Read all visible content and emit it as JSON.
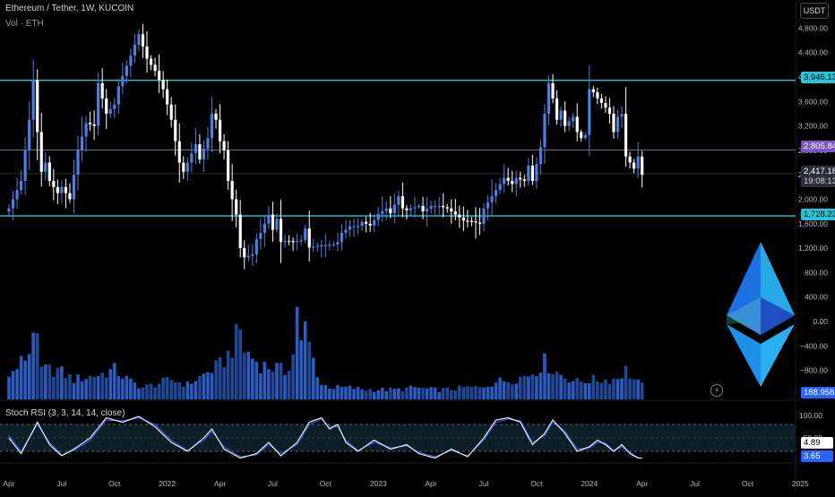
{
  "header": {
    "title": "Ethereum / Tether, 1W, KUCOIN",
    "volume_label": "Vol · ETH",
    "currency_button": "USDT",
    "indicator_label": "Stoch RSI (3, 3, 14, 14, close)"
  },
  "price_tags": {
    "resistance": "3,946.13",
    "mid_level": "2,805.84",
    "last_price": "2,417.18",
    "countdown": "19:08:13",
    "support": "1,728.23",
    "volume": "188.958K",
    "stoch_k": "4.89",
    "stoch_d": "3.65"
  },
  "colors": {
    "background": "#000000",
    "bull_candle": "#4a7fe0",
    "bear_candle": "#ffffff",
    "resistance_line": "#26c6da",
    "support_line": "#26c6da",
    "mid_line": "#6b6e8a",
    "volume_bar": "#2d5fbf",
    "stoch_k": "#ffffff",
    "stoch_d": "#2962ff",
    "logo_top": "#2aa9e8",
    "logo_bottom": "#1e88e5"
  },
  "chart_data": [
    {
      "type": "candlestick",
      "title": "Ethereum / Tether, 1W, KUCOIN",
      "interval": "1W",
      "y_axis_ticks": [
        "4,800.00",
        "4,400.00",
        "4,000.00",
        "3,600.00",
        "3,200.00",
        "2,800.00",
        "2,400.00",
        "2,000.00",
        "1,600.00",
        "1,200.00",
        "800.00",
        "400.00",
        "0.00",
        "−400.00",
        "−800.00",
        "−1,200.00"
      ],
      "y_axis_tick_values": [
        4800,
        4400,
        4000,
        3600,
        3200,
        2800,
        2400,
        2000,
        1600,
        1200,
        800,
        400,
        0,
        -400,
        -800,
        -1200
      ],
      "x_axis_ticks": [
        "Apr",
        "Jul",
        "Oct",
        "2022",
        "Apr",
        "Jul",
        "Oct",
        "2023",
        "Apr",
        "Jul",
        "Oct",
        "2024",
        "Apr",
        "Jul",
        "Oct",
        "2025"
      ],
      "x_axis_tick_weeks": [
        0,
        13,
        26,
        39,
        52,
        65,
        78,
        91,
        104,
        117,
        130,
        143,
        156,
        169,
        182,
        195
      ],
      "first_week": "2021-03-29",
      "horizontal_levels": [
        {
          "name": "resistance",
          "value": 3946.13
        },
        {
          "name": "mid",
          "value": 2805.84
        },
        {
          "name": "current",
          "value": 2417.18
        },
        {
          "name": "support",
          "value": 1728.23
        }
      ],
      "close_anchors": [
        [
          0,
          1850
        ],
        [
          3,
          2300
        ],
        [
          5,
          3300
        ],
        [
          6,
          3950
        ],
        [
          7,
          3100
        ],
        [
          8,
          2450
        ],
        [
          9,
          2600
        ],
        [
          10,
          2300
        ],
        [
          12,
          2100
        ],
        [
          13,
          2200
        ],
        [
          15,
          2000
        ],
        [
          17,
          2800
        ],
        [
          19,
          3250
        ],
        [
          21,
          3200
        ],
        [
          22,
          3900
        ],
        [
          24,
          3400
        ],
        [
          26,
          3550
        ],
        [
          27,
          3850
        ],
        [
          30,
          4350
        ],
        [
          32,
          4700
        ],
        [
          33,
          4500
        ],
        [
          34,
          4300
        ],
        [
          36,
          4100
        ],
        [
          38,
          3800
        ],
        [
          40,
          3300
        ],
        [
          42,
          2600
        ],
        [
          43,
          2450
        ],
        [
          46,
          2900
        ],
        [
          47,
          2650
        ],
        [
          49,
          3000
        ],
        [
          50,
          3400
        ],
        [
          51,
          3300
        ],
        [
          52,
          2950
        ],
        [
          53,
          2800
        ],
        [
          54,
          2300
        ],
        [
          55,
          2000
        ],
        [
          56,
          1750
        ],
        [
          57,
          1200
        ],
        [
          58,
          1050
        ],
        [
          60,
          1100
        ],
        [
          61,
          1350
        ],
        [
          62,
          1450
        ],
        [
          63,
          1600
        ],
        [
          64,
          1750
        ],
        [
          65,
          1500
        ],
        [
          66,
          1680
        ],
        [
          67,
          1300
        ],
        [
          68,
          1320
        ],
        [
          70,
          1310
        ],
        [
          72,
          1330
        ],
        [
          73,
          1520
        ],
        [
          74,
          1210
        ],
        [
          76,
          1240
        ],
        [
          78,
          1250
        ],
        [
          80,
          1260
        ],
        [
          81,
          1300
        ],
        [
          82,
          1450
        ],
        [
          84,
          1560
        ],
        [
          86,
          1560
        ],
        [
          87,
          1630
        ],
        [
          89,
          1570
        ],
        [
          90,
          1660
        ],
        [
          91,
          1760
        ],
        [
          93,
          1850
        ],
        [
          94,
          1770
        ],
        [
          96,
          2050
        ],
        [
          97,
          1850
        ],
        [
          98,
          1820
        ],
        [
          99,
          1850
        ],
        [
          101,
          1890
        ],
        [
          102,
          1800
        ],
        [
          104,
          1890
        ],
        [
          106,
          1890
        ],
        [
          108,
          1850
        ],
        [
          110,
          1750
        ],
        [
          112,
          1650
        ],
        [
          114,
          1640
        ],
        [
          116,
          1600
        ],
        [
          117,
          1850
        ],
        [
          118,
          1950
        ],
        [
          119,
          2050
        ],
        [
          121,
          2250
        ],
        [
          122,
          2350
        ],
        [
          124,
          2250
        ],
        [
          125,
          2350
        ],
        [
          127,
          2300
        ],
        [
          128,
          2550
        ],
        [
          129,
          2300
        ],
        [
          131,
          2850
        ],
        [
          132,
          3400
        ],
        [
          133,
          3900
        ],
        [
          134,
          3650
        ],
        [
          135,
          3300
        ],
        [
          136,
          3450
        ],
        [
          137,
          3200
        ],
        [
          139,
          3350
        ],
        [
          140,
          3100
        ],
        [
          141,
          3000
        ],
        [
          142,
          3050
        ],
        [
          143,
          3800
        ],
        [
          144,
          3750
        ],
        [
          145,
          3650
        ],
        [
          147,
          3500
        ],
        [
          148,
          3400
        ],
        [
          149,
          3100
        ],
        [
          150,
          3350
        ],
        [
          151,
          3400
        ],
        [
          152,
          2700
        ],
        [
          153,
          2600
        ],
        [
          154,
          2500
        ],
        [
          155,
          2700
        ],
        [
          156,
          2400
        ]
      ],
      "last_candle_week": 156
    },
    {
      "type": "bar",
      "title": "Vol · ETH",
      "last_value_label": "188.958K",
      "relative_anchors": [
        [
          0,
          0.22
        ],
        [
          5,
          0.48
        ],
        [
          6,
          0.78
        ],
        [
          8,
          0.3
        ],
        [
          12,
          0.3
        ],
        [
          16,
          0.2
        ],
        [
          22,
          0.25
        ],
        [
          26,
          0.3
        ],
        [
          30,
          0.18
        ],
        [
          33,
          0.12
        ],
        [
          40,
          0.2
        ],
        [
          44,
          0.15
        ],
        [
          48,
          0.25
        ],
        [
          52,
          0.35
        ],
        [
          54,
          0.45
        ],
        [
          57,
          0.7
        ],
        [
          58,
          0.5
        ],
        [
          62,
          0.35
        ],
        [
          66,
          0.32
        ],
        [
          68,
          0.28
        ],
        [
          70,
          0.45
        ],
        [
          71,
          1.0
        ],
        [
          72,
          0.55
        ],
        [
          73,
          0.7
        ],
        [
          75,
          0.4
        ],
        [
          77,
          0.15
        ],
        [
          80,
          0.12
        ],
        [
          84,
          0.12
        ],
        [
          88,
          0.1
        ],
        [
          92,
          0.1
        ],
        [
          96,
          0.1
        ],
        [
          100,
          0.12
        ],
        [
          104,
          0.1
        ],
        [
          108,
          0.1
        ],
        [
          112,
          0.12
        ],
        [
          116,
          0.12
        ],
        [
          118,
          0.15
        ],
        [
          120,
          0.18
        ],
        [
          124,
          0.2
        ],
        [
          128,
          0.25
        ],
        [
          130,
          0.3
        ],
        [
          132,
          0.38
        ],
        [
          134,
          0.3
        ],
        [
          136,
          0.25
        ],
        [
          140,
          0.18
        ],
        [
          144,
          0.2
        ],
        [
          148,
          0.2
        ],
        [
          150,
          0.22
        ],
        [
          152,
          0.3
        ],
        [
          154,
          0.2
        ],
        [
          156,
          0.14
        ]
      ]
    },
    {
      "type": "line",
      "title": "Stoch RSI (3, 3, 14, 14, close)",
      "y_ticks": [
        "100.00",
        "50.00"
      ],
      "bands": [
        80,
        20
      ],
      "series": [
        {
          "name": "K",
          "last": 4.89,
          "anchors": [
            [
              0,
              50
            ],
            [
              3,
              15
            ],
            [
              7,
              85
            ],
            [
              10,
              35
            ],
            [
              13,
              10
            ],
            [
              16,
              25
            ],
            [
              20,
              50
            ],
            [
              24,
              95
            ],
            [
              28,
              85
            ],
            [
              32,
              98
            ],
            [
              36,
              75
            ],
            [
              40,
              40
            ],
            [
              44,
              20
            ],
            [
              48,
              50
            ],
            [
              50,
              70
            ],
            [
              53,
              25
            ],
            [
              57,
              5
            ],
            [
              61,
              15
            ],
            [
              64,
              40
            ],
            [
              67,
              10
            ],
            [
              71,
              40
            ],
            [
              74,
              85
            ],
            [
              77,
              95
            ],
            [
              79,
              70
            ],
            [
              81,
              80
            ],
            [
              83,
              40
            ],
            [
              86,
              20
            ],
            [
              90,
              45
            ],
            [
              94,
              25
            ],
            [
              98,
              35
            ],
            [
              101,
              15
            ],
            [
              105,
              5
            ],
            [
              109,
              25
            ],
            [
              113,
              8
            ],
            [
              117,
              50
            ],
            [
              120,
              90
            ],
            [
              123,
              95
            ],
            [
              126,
              85
            ],
            [
              129,
              35
            ],
            [
              132,
              60
            ],
            [
              134,
              90
            ],
            [
              137,
              60
            ],
            [
              140,
              20
            ],
            [
              143,
              30
            ],
            [
              145,
              45
            ],
            [
              147,
              35
            ],
            [
              149,
              20
            ],
            [
              151,
              35
            ],
            [
              153,
              15
            ],
            [
              155,
              5
            ],
            [
              156,
              5
            ]
          ]
        },
        {
          "name": "D",
          "last": 3.65,
          "anchors": [
            [
              0,
              55
            ],
            [
              3,
              20
            ],
            [
              7,
              80
            ],
            [
              10,
              40
            ],
            [
              13,
              12
            ],
            [
              16,
              22
            ],
            [
              20,
              45
            ],
            [
              24,
              90
            ],
            [
              28,
              88
            ],
            [
              32,
              95
            ],
            [
              36,
              80
            ],
            [
              40,
              45
            ],
            [
              44,
              22
            ],
            [
              48,
              45
            ],
            [
              50,
              65
            ],
            [
              53,
              30
            ],
            [
              57,
              8
            ],
            [
              61,
              12
            ],
            [
              64,
              35
            ],
            [
              67,
              15
            ],
            [
              71,
              35
            ],
            [
              74,
              80
            ],
            [
              77,
              92
            ],
            [
              79,
              75
            ],
            [
              81,
              75
            ],
            [
              83,
              45
            ],
            [
              86,
              22
            ],
            [
              90,
              40
            ],
            [
              94,
              28
            ],
            [
              98,
              32
            ],
            [
              101,
              18
            ],
            [
              105,
              8
            ],
            [
              109,
              22
            ],
            [
              113,
              10
            ],
            [
              117,
              45
            ],
            [
              120,
              85
            ],
            [
              123,
              92
            ],
            [
              126,
              88
            ],
            [
              129,
              40
            ],
            [
              132,
              55
            ],
            [
              134,
              85
            ],
            [
              137,
              65
            ],
            [
              140,
              25
            ],
            [
              143,
              28
            ],
            [
              145,
              40
            ],
            [
              147,
              38
            ],
            [
              149,
              22
            ],
            [
              151,
              30
            ],
            [
              153,
              18
            ],
            [
              155,
              6
            ],
            [
              156,
              4
            ]
          ]
        }
      ]
    }
  ]
}
